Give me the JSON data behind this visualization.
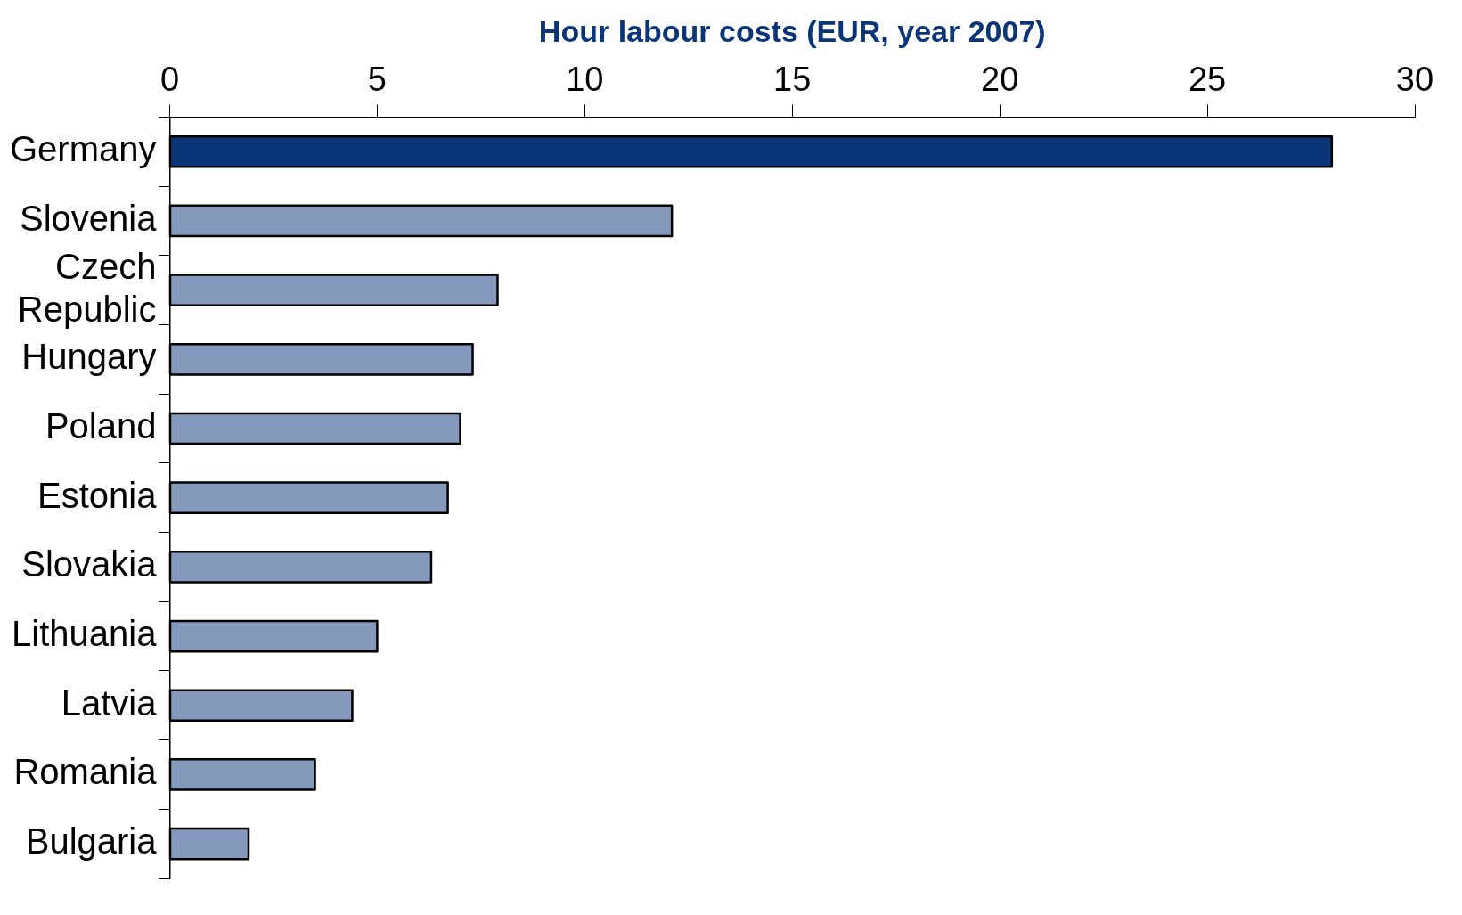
{
  "chart_data": {
    "type": "bar",
    "orientation": "horizontal",
    "xlabel": "Hour labour costs (EUR, year 2007)",
    "categories": [
      "Germany",
      "Slovenia",
      "Czech Republic",
      "Hungary",
      "Poland",
      "Estonia",
      "Slovakia",
      "Lithuania",
      "Latvia",
      "Romania",
      "Bulgaria"
    ],
    "values": [
      28.0,
      12.1,
      7.9,
      7.3,
      7.0,
      6.7,
      6.3,
      5.0,
      4.4,
      3.5,
      1.9
    ],
    "colors": [
      "#0a3576",
      "#8499bb",
      "#8499bb",
      "#8499bb",
      "#8499bb",
      "#8499bb",
      "#8499bb",
      "#8499bb",
      "#8499bb",
      "#8499bb",
      "#8499bb"
    ],
    "xlim": [
      0,
      30
    ],
    "xticks": [
      0,
      5,
      10,
      15,
      20,
      25,
      30
    ],
    "grid": false,
    "legend": false
  }
}
